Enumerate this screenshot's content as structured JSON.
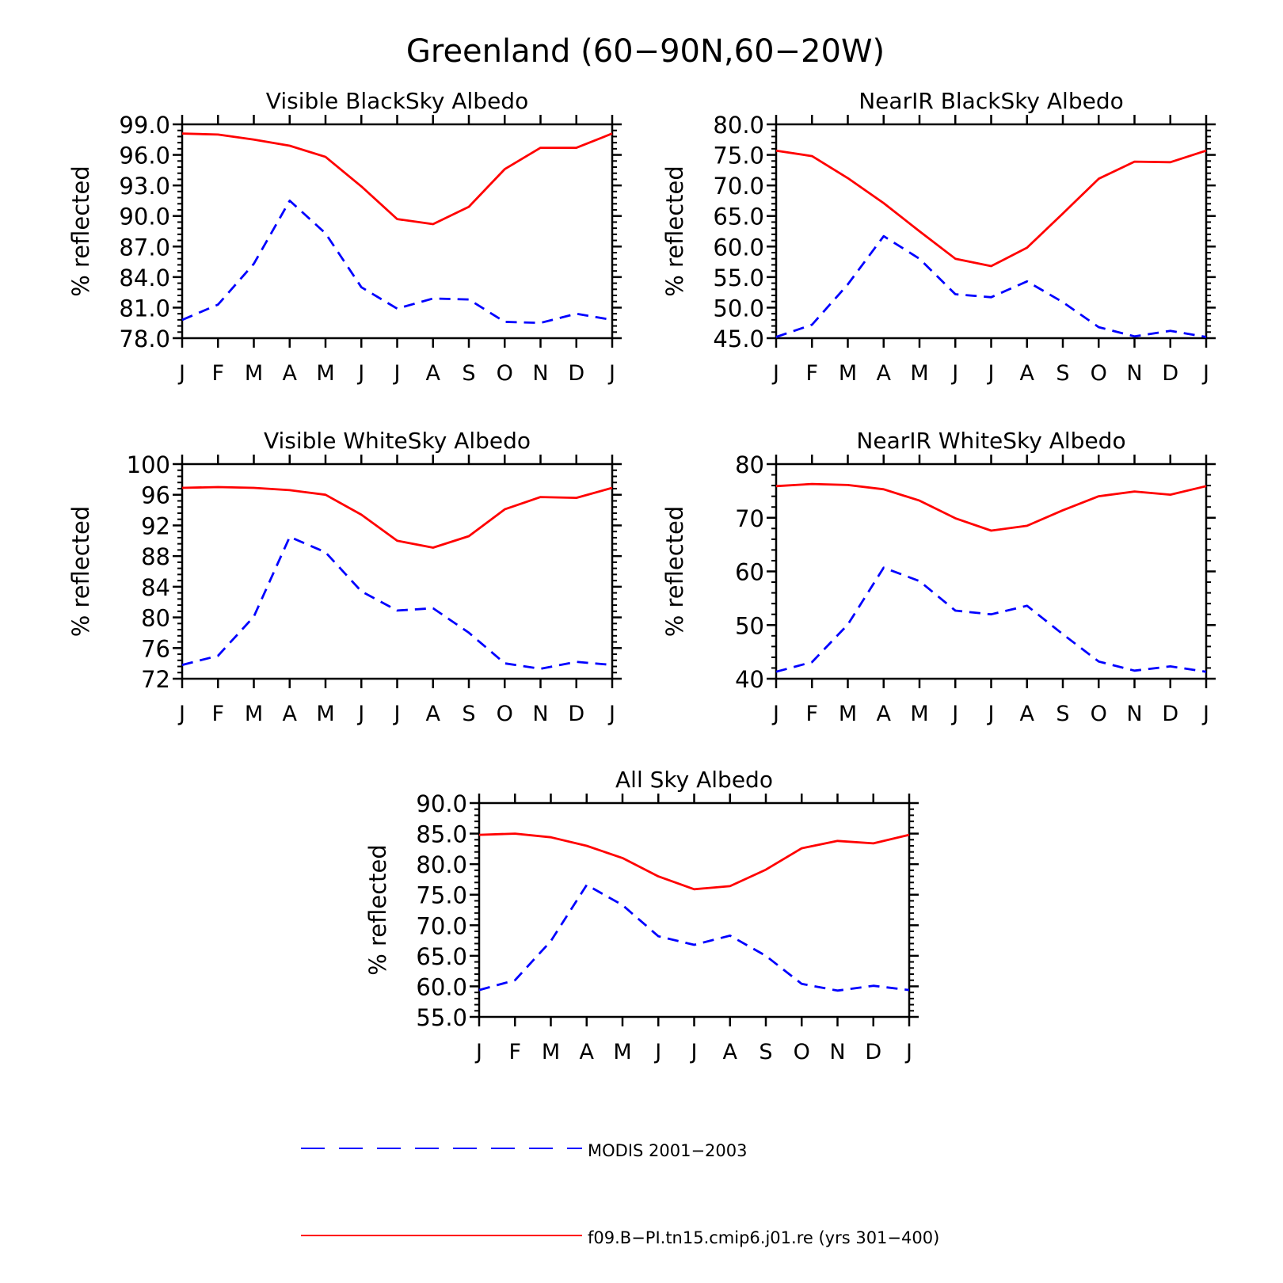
{
  "figure_title": "Greenland (60−90N,60−20W)",
  "months": [
    "J",
    "F",
    "M",
    "A",
    "M",
    "J",
    "J",
    "A",
    "S",
    "O",
    "N",
    "D",
    "J"
  ],
  "colors": {
    "model": "#ff0000",
    "obs": "#0000ff",
    "axis": "#000000"
  },
  "legend": {
    "obs_label": "MODIS 2001−2003",
    "model_label": "f09.B−PI.tn15.cmip6.j01.re (yrs 301−400)"
  },
  "chart_data": [
    {
      "type": "line",
      "title": "Visible BlackSky Albedo",
      "ylabel": "% reflected",
      "ylim": [
        78,
        99
      ],
      "yticks": [
        "78.0",
        "81.0",
        "84.0",
        "87.0",
        "90.0",
        "93.0",
        "96.0",
        "99.0"
      ],
      "series": [
        {
          "name": "f09.B−PI.tn15.cmip6.j01.re (yrs 301−400)",
          "values": [
            98.1,
            98.0,
            97.5,
            96.9,
            95.8,
            92.9,
            89.7,
            89.2,
            90.9,
            94.6,
            96.7,
            96.7,
            98.1
          ]
        },
        {
          "name": "MODIS 2001−2003",
          "values": [
            79.8,
            81.3,
            85.3,
            91.5,
            88.3,
            83.0,
            80.9,
            81.9,
            81.8,
            79.6,
            79.5,
            80.4,
            79.8
          ]
        }
      ]
    },
    {
      "type": "line",
      "title": "NearIR BlackSky Albedo",
      "ylabel": "% reflected",
      "ylim": [
        45,
        80
      ],
      "yticks": [
        "45.0",
        "50.0",
        "55.0",
        "60.0",
        "65.0",
        "70.0",
        "75.0",
        "80.0"
      ],
      "series": [
        {
          "name": "f09.B−PI.tn15.cmip6.j01.re (yrs 301−400)",
          "values": [
            75.7,
            74.8,
            71.2,
            67.1,
            62.5,
            58.0,
            56.8,
            59.8,
            65.4,
            71.1,
            73.9,
            73.8,
            75.7
          ]
        },
        {
          "name": "MODIS 2001−2003",
          "values": [
            45.2,
            47.2,
            53.8,
            61.7,
            58.0,
            52.2,
            51.7,
            54.3,
            50.9,
            46.8,
            45.3,
            46.2,
            45.2
          ]
        }
      ]
    },
    {
      "type": "line",
      "title": "Visible WhiteSky Albedo",
      "ylabel": "% reflected",
      "ylim": [
        72,
        100
      ],
      "yticks": [
        "72",
        "76",
        "80",
        "84",
        "88",
        "92",
        "96",
        "100"
      ],
      "series": [
        {
          "name": "f09.B−PI.tn15.cmip6.j01.re (yrs 301−400)",
          "values": [
            96.9,
            97.0,
            96.9,
            96.6,
            96.0,
            93.4,
            90.0,
            89.1,
            90.6,
            94.1,
            95.7,
            95.6,
            96.9
          ]
        },
        {
          "name": "MODIS 2001−2003",
          "values": [
            73.8,
            75.0,
            80.1,
            90.5,
            88.5,
            83.4,
            80.9,
            81.2,
            78.0,
            74.0,
            73.3,
            74.2,
            73.8
          ]
        }
      ]
    },
    {
      "type": "line",
      "title": "NearIR WhiteSky Albedo",
      "ylabel": "% reflected",
      "ylim": [
        40,
        80
      ],
      "yticks": [
        "40",
        "50",
        "60",
        "70",
        "80"
      ],
      "series": [
        {
          "name": "f09.B−PI.tn15.cmip6.j01.re (yrs 301−400)",
          "values": [
            75.9,
            76.3,
            76.1,
            75.3,
            73.2,
            69.9,
            67.6,
            68.5,
            71.4,
            74.0,
            74.9,
            74.3,
            75.9
          ]
        },
        {
          "name": "MODIS 2001−2003",
          "values": [
            41.3,
            43.1,
            50.1,
            60.7,
            58.2,
            52.7,
            52.0,
            53.6,
            48.3,
            43.2,
            41.5,
            42.3,
            41.3
          ]
        }
      ]
    },
    {
      "type": "line",
      "title": "All Sky Albedo",
      "ylabel": "% reflected",
      "ylim": [
        55,
        90
      ],
      "yticks": [
        "55.0",
        "60.0",
        "65.0",
        "70.0",
        "75.0",
        "80.0",
        "85.0",
        "90.0"
      ],
      "series": [
        {
          "name": "f09.B−PI.tn15.cmip6.j01.re (yrs 301−400)",
          "values": [
            84.8,
            85.0,
            84.4,
            83.0,
            81.0,
            78.0,
            75.9,
            76.4,
            79.1,
            82.6,
            83.8,
            83.4,
            84.8
          ]
        },
        {
          "name": "MODIS 2001−2003",
          "values": [
            59.4,
            61.0,
            67.4,
            76.6,
            73.3,
            68.2,
            66.8,
            68.3,
            65.0,
            60.4,
            59.3,
            60.1,
            59.4
          ]
        }
      ]
    }
  ]
}
